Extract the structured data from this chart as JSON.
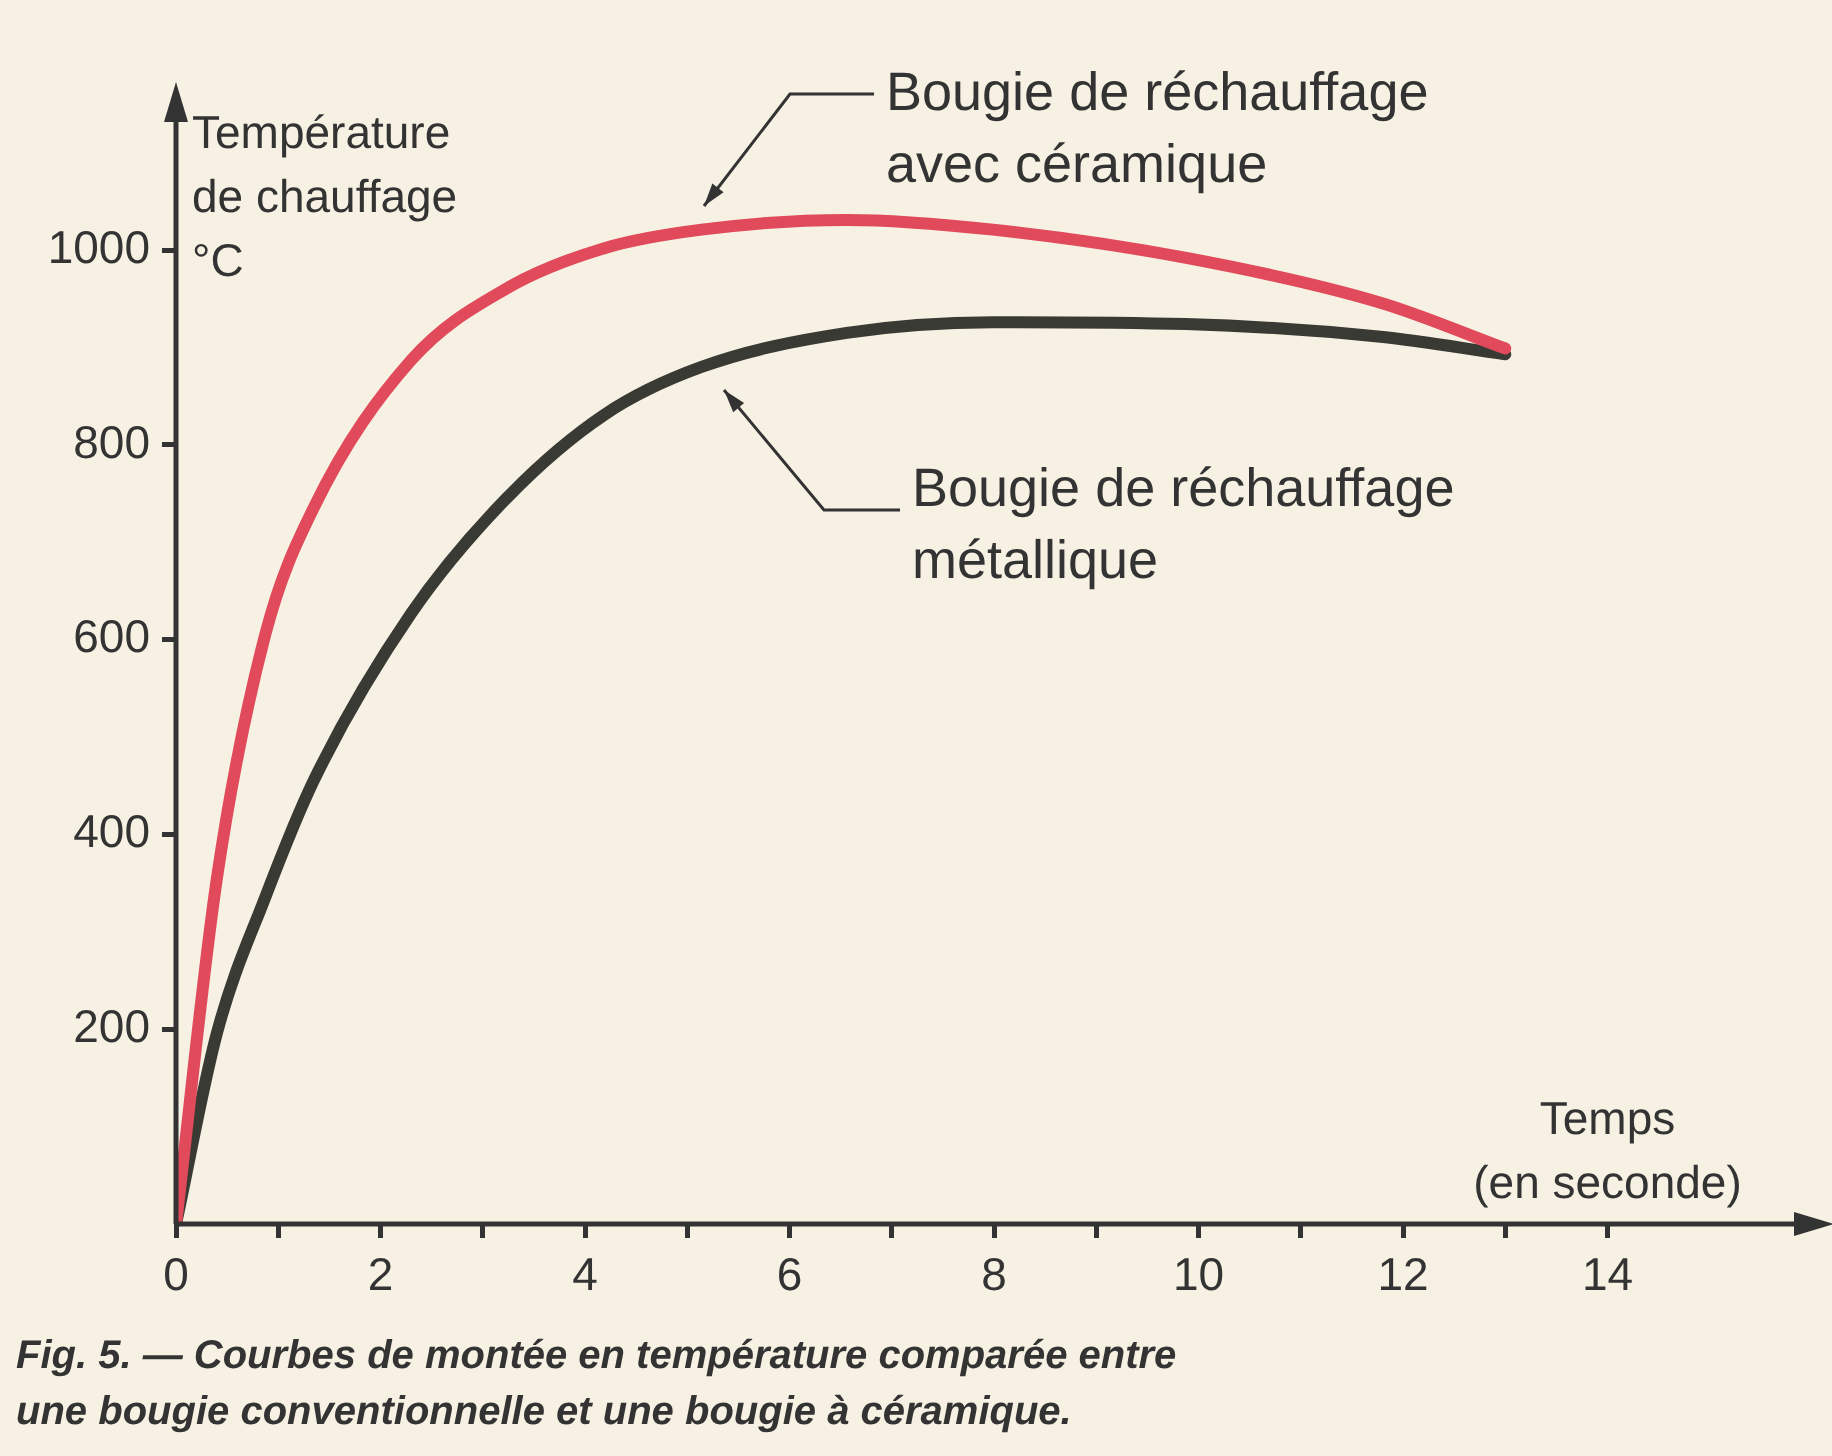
{
  "chart_data": {
    "type": "line",
    "ylabel": "Température\nde chauffage\n°C",
    "xlabel": "Temps\n(en seconde)",
    "xlim": [
      0,
      16
    ],
    "ylim": [
      0,
      1150
    ],
    "xticks": [
      0,
      {
        "value": 1,
        "label": null
      },
      2,
      {
        "value": 3,
        "label": null
      },
      4,
      {
        "value": 5,
        "label": null
      },
      6,
      {
        "value": 7,
        "label": null
      },
      8,
      {
        "value": 9,
        "label": null
      },
      10,
      {
        "value": 11,
        "label": null
      },
      12,
      {
        "value": 13,
        "label": null
      },
      14
    ],
    "yticks": [
      200,
      400,
      600,
      800,
      1000
    ],
    "grid": false,
    "legend": false,
    "marker": "none",
    "line_style": "solid",
    "series": [
      {
        "color": "#e04a5a",
        "x": [
          0,
          0.4,
          0.875,
          1.35,
          2.3,
          3.24,
          4.19,
          5.14,
          6.56,
          7.99,
          9.88,
          11.78,
          13
        ],
        "values": [
          0,
          355,
          606,
          736,
          887,
          961,
          1002,
          1021,
          1031,
          1021,
          992,
          946,
          899
        ]
      },
      {
        "color": "#3a3a35",
        "x": [
          0,
          0.4,
          0.875,
          1.35,
          2.3,
          3.24,
          4.19,
          5.14,
          6.56,
          7.99,
          9.88,
          11.78,
          13
        ],
        "values": [
          0,
          196,
          336,
          456,
          627,
          746,
          831,
          880,
          915,
          926,
          924,
          911,
          893
        ]
      }
    ],
    "annotations": [
      "Bougie de réchauffage\navec céramique",
      "Bougie de réchauffage\nmétallique",
      "Fig. 5. — Courbes de montée en température comparée entre\nune bougie conventionnelle et une bougie à céramique."
    ]
  }
}
